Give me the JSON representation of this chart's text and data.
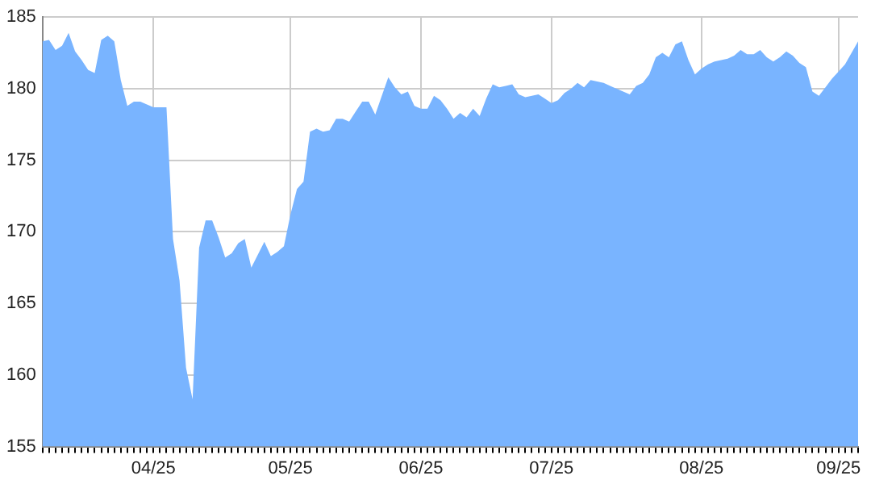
{
  "chart_data": {
    "type": "area",
    "categories": [
      null,
      null,
      null,
      null,
      null,
      null,
      null,
      null,
      null,
      null,
      null,
      null,
      null,
      null,
      null,
      null,
      null,
      "04/25",
      null,
      null,
      null,
      null,
      null,
      null,
      null,
      null,
      null,
      null,
      null,
      null,
      null,
      null,
      null,
      null,
      null,
      null,
      null,
      null,
      "05/25",
      null,
      null,
      null,
      null,
      null,
      null,
      null,
      null,
      null,
      null,
      null,
      null,
      null,
      null,
      null,
      null,
      null,
      null,
      null,
      "06/25",
      null,
      null,
      null,
      null,
      null,
      null,
      null,
      null,
      null,
      null,
      null,
      null,
      null,
      null,
      null,
      null,
      null,
      null,
      null,
      "07/25",
      null,
      null,
      null,
      null,
      null,
      null,
      null,
      null,
      null,
      null,
      null,
      null,
      null,
      null,
      null,
      null,
      null,
      null,
      null,
      null,
      null,
      null,
      "08/25",
      null,
      null,
      null,
      null,
      null,
      null,
      null,
      null,
      null,
      null,
      null,
      null,
      null,
      null,
      null,
      null,
      null,
      null,
      null,
      null,
      "09/25",
      null,
      null,
      null
    ],
    "values": [
      183.3,
      183.4,
      182.7,
      183.0,
      183.9,
      182.6,
      182.0,
      181.3,
      181.1,
      183.4,
      183.7,
      183.3,
      180.6,
      178.8,
      179.1,
      179.1,
      178.9,
      178.7,
      178.7,
      178.7,
      169.5,
      166.6,
      160.5,
      158.3,
      168.9,
      170.8,
      170.8,
      169.6,
      168.2,
      168.5,
      169.2,
      169.5,
      167.5,
      168.4,
      169.3,
      168.3,
      168.6,
      169.0,
      171.2,
      173.0,
      173.5,
      177.0,
      177.2,
      177.0,
      177.1,
      177.9,
      177.9,
      177.7,
      178.4,
      179.1,
      179.1,
      178.2,
      179.5,
      180.8,
      180.1,
      179.6,
      179.8,
      178.8,
      178.6,
      178.6,
      179.5,
      179.2,
      178.6,
      177.9,
      178.3,
      178.0,
      178.6,
      178.1,
      179.3,
      180.3,
      180.1,
      180.2,
      180.3,
      179.6,
      179.4,
      179.5,
      179.6,
      179.3,
      179.0,
      179.2,
      179.7,
      180.0,
      180.4,
      180.1,
      180.6,
      180.5,
      180.4,
      180.2,
      180.0,
      179.8,
      179.6,
      180.2,
      180.4,
      181.0,
      182.2,
      182.5,
      182.2,
      183.1,
      183.3,
      182.0,
      181.0,
      181.4,
      181.7,
      181.9,
      182.0,
      182.1,
      182.3,
      182.7,
      182.4,
      182.4,
      182.7,
      182.2,
      181.9,
      182.2,
      182.6,
      182.3,
      181.8,
      181.5,
      179.8,
      179.5,
      180.1,
      180.7,
      181.2,
      181.7,
      182.5,
      183.3
    ],
    "color": "#79b4ff",
    "ylim": [
      155,
      185
    ],
    "yticks": [
      155,
      160,
      165,
      170,
      175,
      180,
      185
    ],
    "grid": true
  }
}
